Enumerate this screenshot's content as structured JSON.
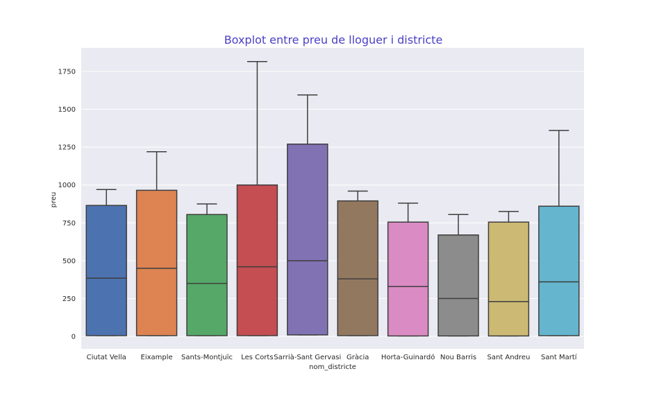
{
  "chart_data": {
    "type": "boxplot",
    "title": "Boxplot entre preu de lloguer i districte",
    "xlabel": "nom_districte",
    "ylabel": "preu",
    "ylim": [
      -80,
      1920
    ],
    "yticks": [
      0,
      250,
      500,
      750,
      1000,
      1250,
      1500,
      1750
    ],
    "grid": true,
    "categories": [
      "Ciutat Vella",
      "Eixample",
      "Sants-Montjuïc",
      "Les Corts",
      "Sarrià-Sant Gervasi",
      "Gràcia",
      "Horta-Guinardó",
      "Nou Barris",
      "Sant Andreu",
      "Sant Martí"
    ],
    "boxes": [
      {
        "category": "Ciutat Vella",
        "whisker_low": 5,
        "q1": 5,
        "median": 385,
        "q3": 865,
        "whisker_high": 970,
        "color": "#4c72b0"
      },
      {
        "category": "Eixample",
        "whisker_low": 5,
        "q1": 5,
        "median": 450,
        "q3": 965,
        "whisker_high": 1220,
        "color": "#dd8452"
      },
      {
        "category": "Sants-Montjuïc",
        "whisker_low": 5,
        "q1": 5,
        "median": 350,
        "q3": 805,
        "whisker_high": 875,
        "color": "#55a868"
      },
      {
        "category": "Les Corts",
        "whisker_low": 5,
        "q1": 5,
        "median": 460,
        "q3": 1000,
        "whisker_high": 1815,
        "color": "#c44e52"
      },
      {
        "category": "Sarrià-Sant Gervasi",
        "whisker_low": 10,
        "q1": 10,
        "median": 500,
        "q3": 1270,
        "whisker_high": 1595,
        "color": "#8172b3"
      },
      {
        "category": "Gràcia",
        "whisker_low": 5,
        "q1": 5,
        "median": 380,
        "q3": 895,
        "whisker_high": 960,
        "color": "#937860"
      },
      {
        "category": "Horta-Guinardó",
        "whisker_low": 3,
        "q1": 3,
        "median": 330,
        "q3": 755,
        "whisker_high": 880,
        "color": "#da8bc3"
      },
      {
        "category": "Nou Barris",
        "whisker_low": 3,
        "q1": 3,
        "median": 250,
        "q3": 670,
        "whisker_high": 805,
        "color": "#8c8c8c"
      },
      {
        "category": "Sant Andreu",
        "whisker_low": 3,
        "q1": 3,
        "median": 230,
        "q3": 755,
        "whisker_high": 825,
        "color": "#ccb974"
      },
      {
        "category": "Sant Martí",
        "whisker_low": 5,
        "q1": 5,
        "median": 360,
        "q3": 860,
        "whisker_high": 1360,
        "color": "#64b5cd"
      }
    ]
  }
}
